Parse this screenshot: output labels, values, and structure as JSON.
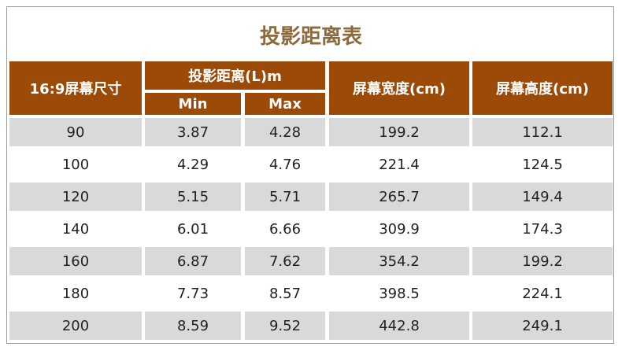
{
  "title": "投影距离表",
  "table": {
    "header": {
      "size": "16:9屏幕尺寸",
      "distance": "投影距离(L)m",
      "min": "Min",
      "max": "Max",
      "width": "屏幕宽度(cm)",
      "height": "屏幕高度(cm)"
    },
    "rows": [
      [
        "90",
        "3.87",
        "4.28",
        "199.2",
        "112.1"
      ],
      [
        "100",
        "4.29",
        "4.76",
        "221.4",
        "124.5"
      ],
      [
        "120",
        "5.15",
        "5.71",
        "265.7",
        "149.4"
      ],
      [
        "140",
        "6.01",
        "6.66",
        "309.9",
        "174.3"
      ],
      [
        "160",
        "6.87",
        "7.62",
        "354.2",
        "199.2"
      ],
      [
        "180",
        "7.73",
        "8.57",
        "398.5",
        "224.1"
      ],
      [
        "200",
        "8.59",
        "9.52",
        "442.8",
        "249.1"
      ]
    ]
  }
}
